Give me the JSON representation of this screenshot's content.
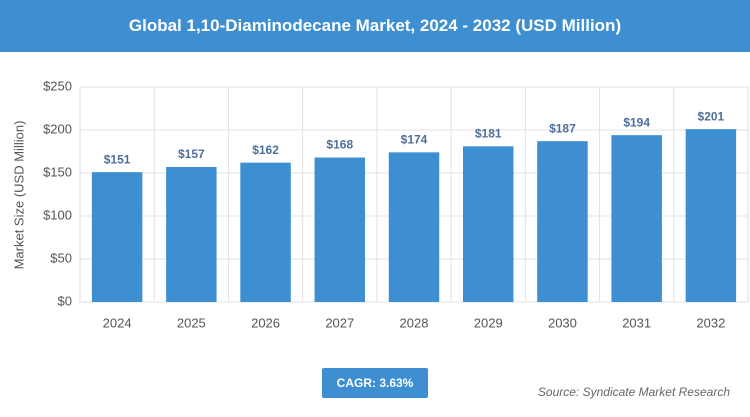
{
  "chart_data": {
    "type": "bar",
    "title": "Global 1,10-Diaminodecane Market, 2024 - 2032 (USD Million)",
    "y_label": "Market Size (USD Million)",
    "categories": [
      "2024",
      "2025",
      "2026",
      "2027",
      "2028",
      "2029",
      "2030",
      "2031",
      "2032"
    ],
    "values": [
      151,
      157,
      162,
      168,
      174,
      181,
      187,
      194,
      201
    ],
    "value_labels": [
      "$151",
      "$157",
      "$162",
      "$168",
      "$174",
      "$181",
      "$187",
      "$194",
      "$201"
    ],
    "color": "#3d8fd1",
    "ylim": [
      0,
      250
    ],
    "yticks": [
      {
        "value": 0,
        "label": "$0"
      },
      {
        "value": 50,
        "label": "$50"
      },
      {
        "value": 100,
        "label": "$100"
      },
      {
        "value": 150,
        "label": "$150"
      },
      {
        "value": 200,
        "label": "$200"
      },
      {
        "value": 250,
        "label": "$250"
      }
    ],
    "grid": true,
    "annotations": {
      "cagr": "CAGR: 3.63%",
      "source": "Source: Syndicate Market Research"
    }
  }
}
